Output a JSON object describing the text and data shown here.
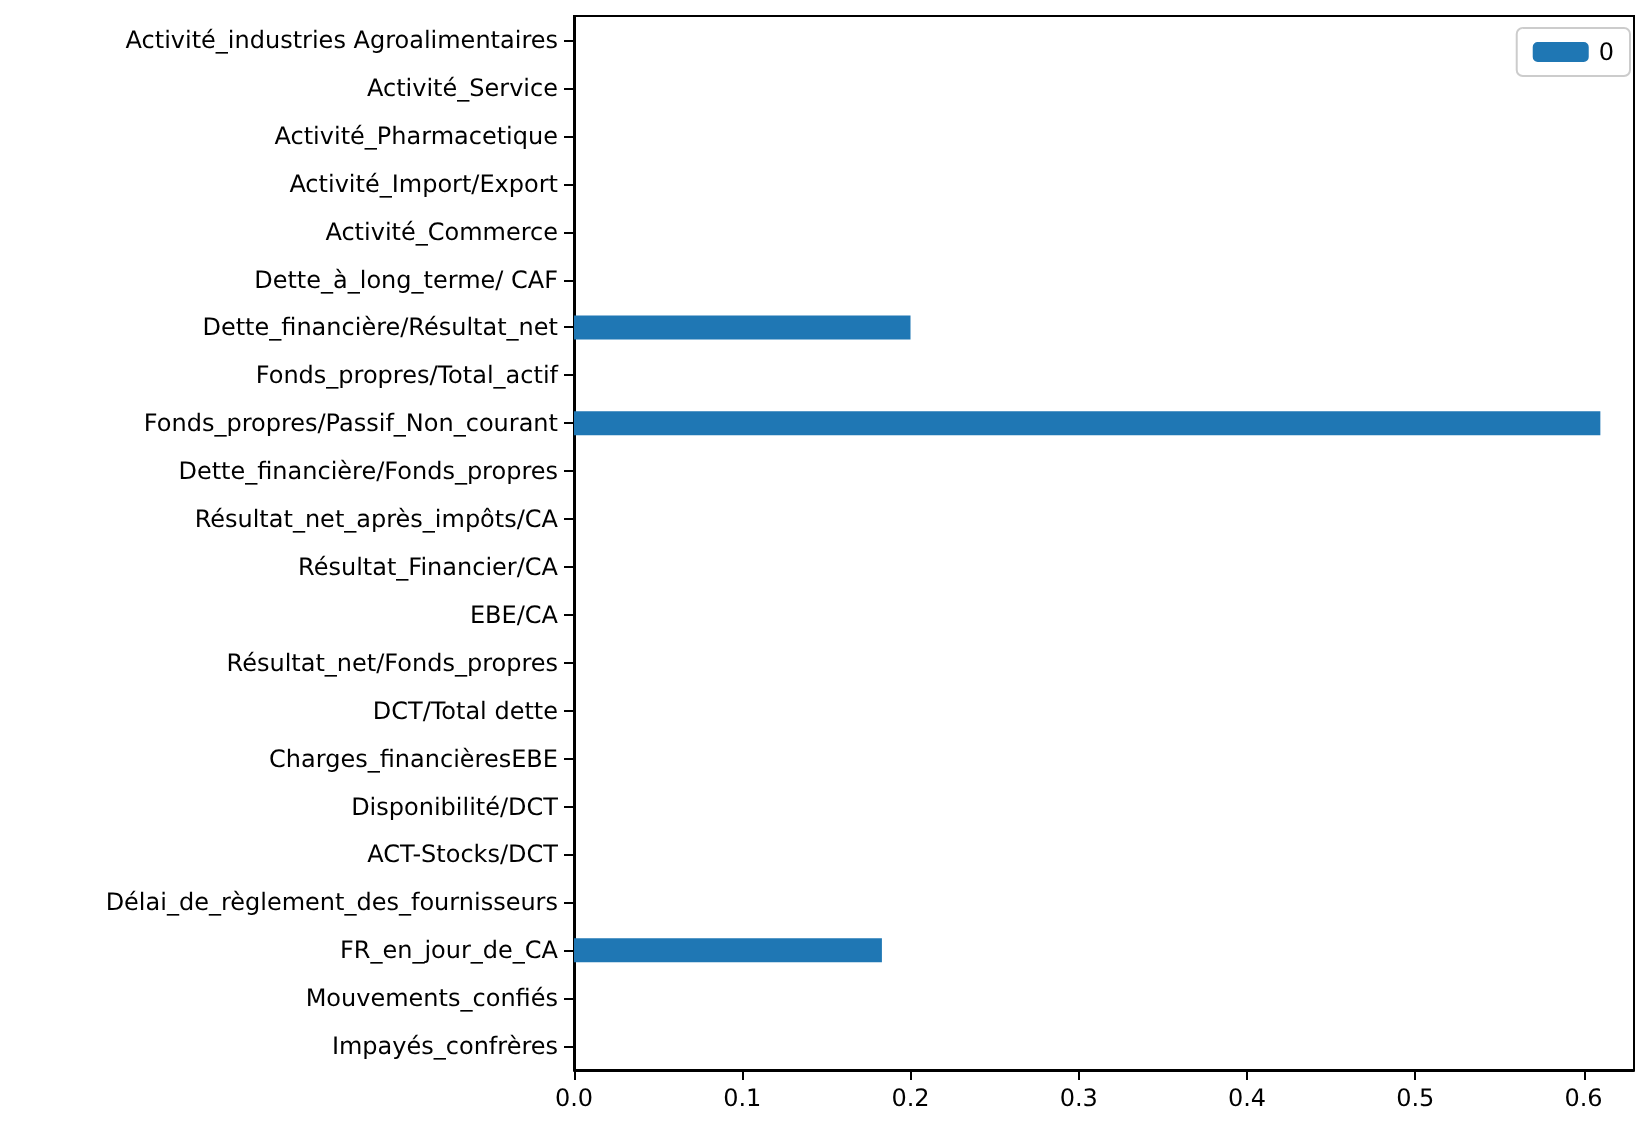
{
  "chart_data": {
    "type": "bar",
    "orientation": "horizontal",
    "categories": [
      "Activité_industries Agroalimentaires",
      "Activité_Service",
      "Activité_Pharmacetique",
      "Activité_Import/Export",
      "Activité_Commerce",
      "Dette_à_long_terme/ CAF",
      "Dette_financière/Résultat_net",
      "Fonds_propres/Total_actif",
      "Fonds_propres/Passif_Non_courant",
      "Dette_financière/Fonds_propres",
      "Résultat_net_après_impôts/CA",
      "Résultat_Financier/CA",
      "EBE/CA",
      "Résultat_net/Fonds_propres",
      "DCT/Total dette",
      "Charges_financièresEBE",
      "Disponibilité/DCT",
      "ACT-Stocks/DCT",
      "Délai_de_règlement_des_fournisseurs",
      "FR_en_jour_de_CA",
      "Mouvements_confiés",
      "Impayés_confrères"
    ],
    "series": [
      {
        "name": "0",
        "color": "#1f77b4",
        "values": [
          0,
          0,
          0,
          0,
          0,
          0,
          0.2,
          0,
          0.61,
          0,
          0,
          0,
          0,
          0,
          0,
          0,
          0,
          0,
          0,
          0.183,
          0,
          0
        ]
      }
    ],
    "xlim": [
      0,
      0.63
    ],
    "xticks": [
      {
        "value": 0,
        "label": "0.0"
      },
      0.1,
      0.2,
      0.3,
      0.4,
      0.5,
      0.6
    ],
    "grid": false,
    "legend": "top right"
  }
}
